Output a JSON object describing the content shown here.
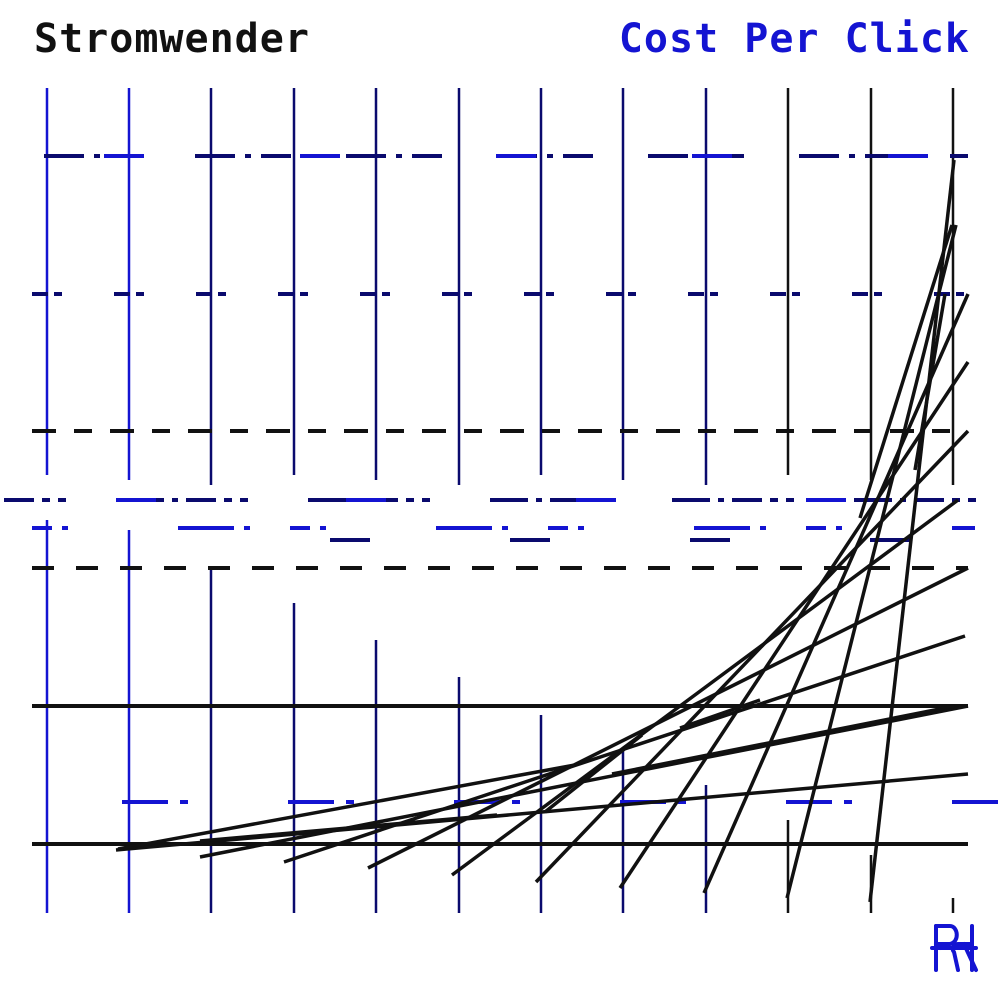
{
  "header": {
    "brand": "Stromwender",
    "metric": "Cost Per Click"
  },
  "colors": {
    "blue": "#1414d2",
    "navy": "#0a0a6e",
    "black": "#111111"
  },
  "icons": {
    "logo": "rk-monogram-logo"
  }
}
